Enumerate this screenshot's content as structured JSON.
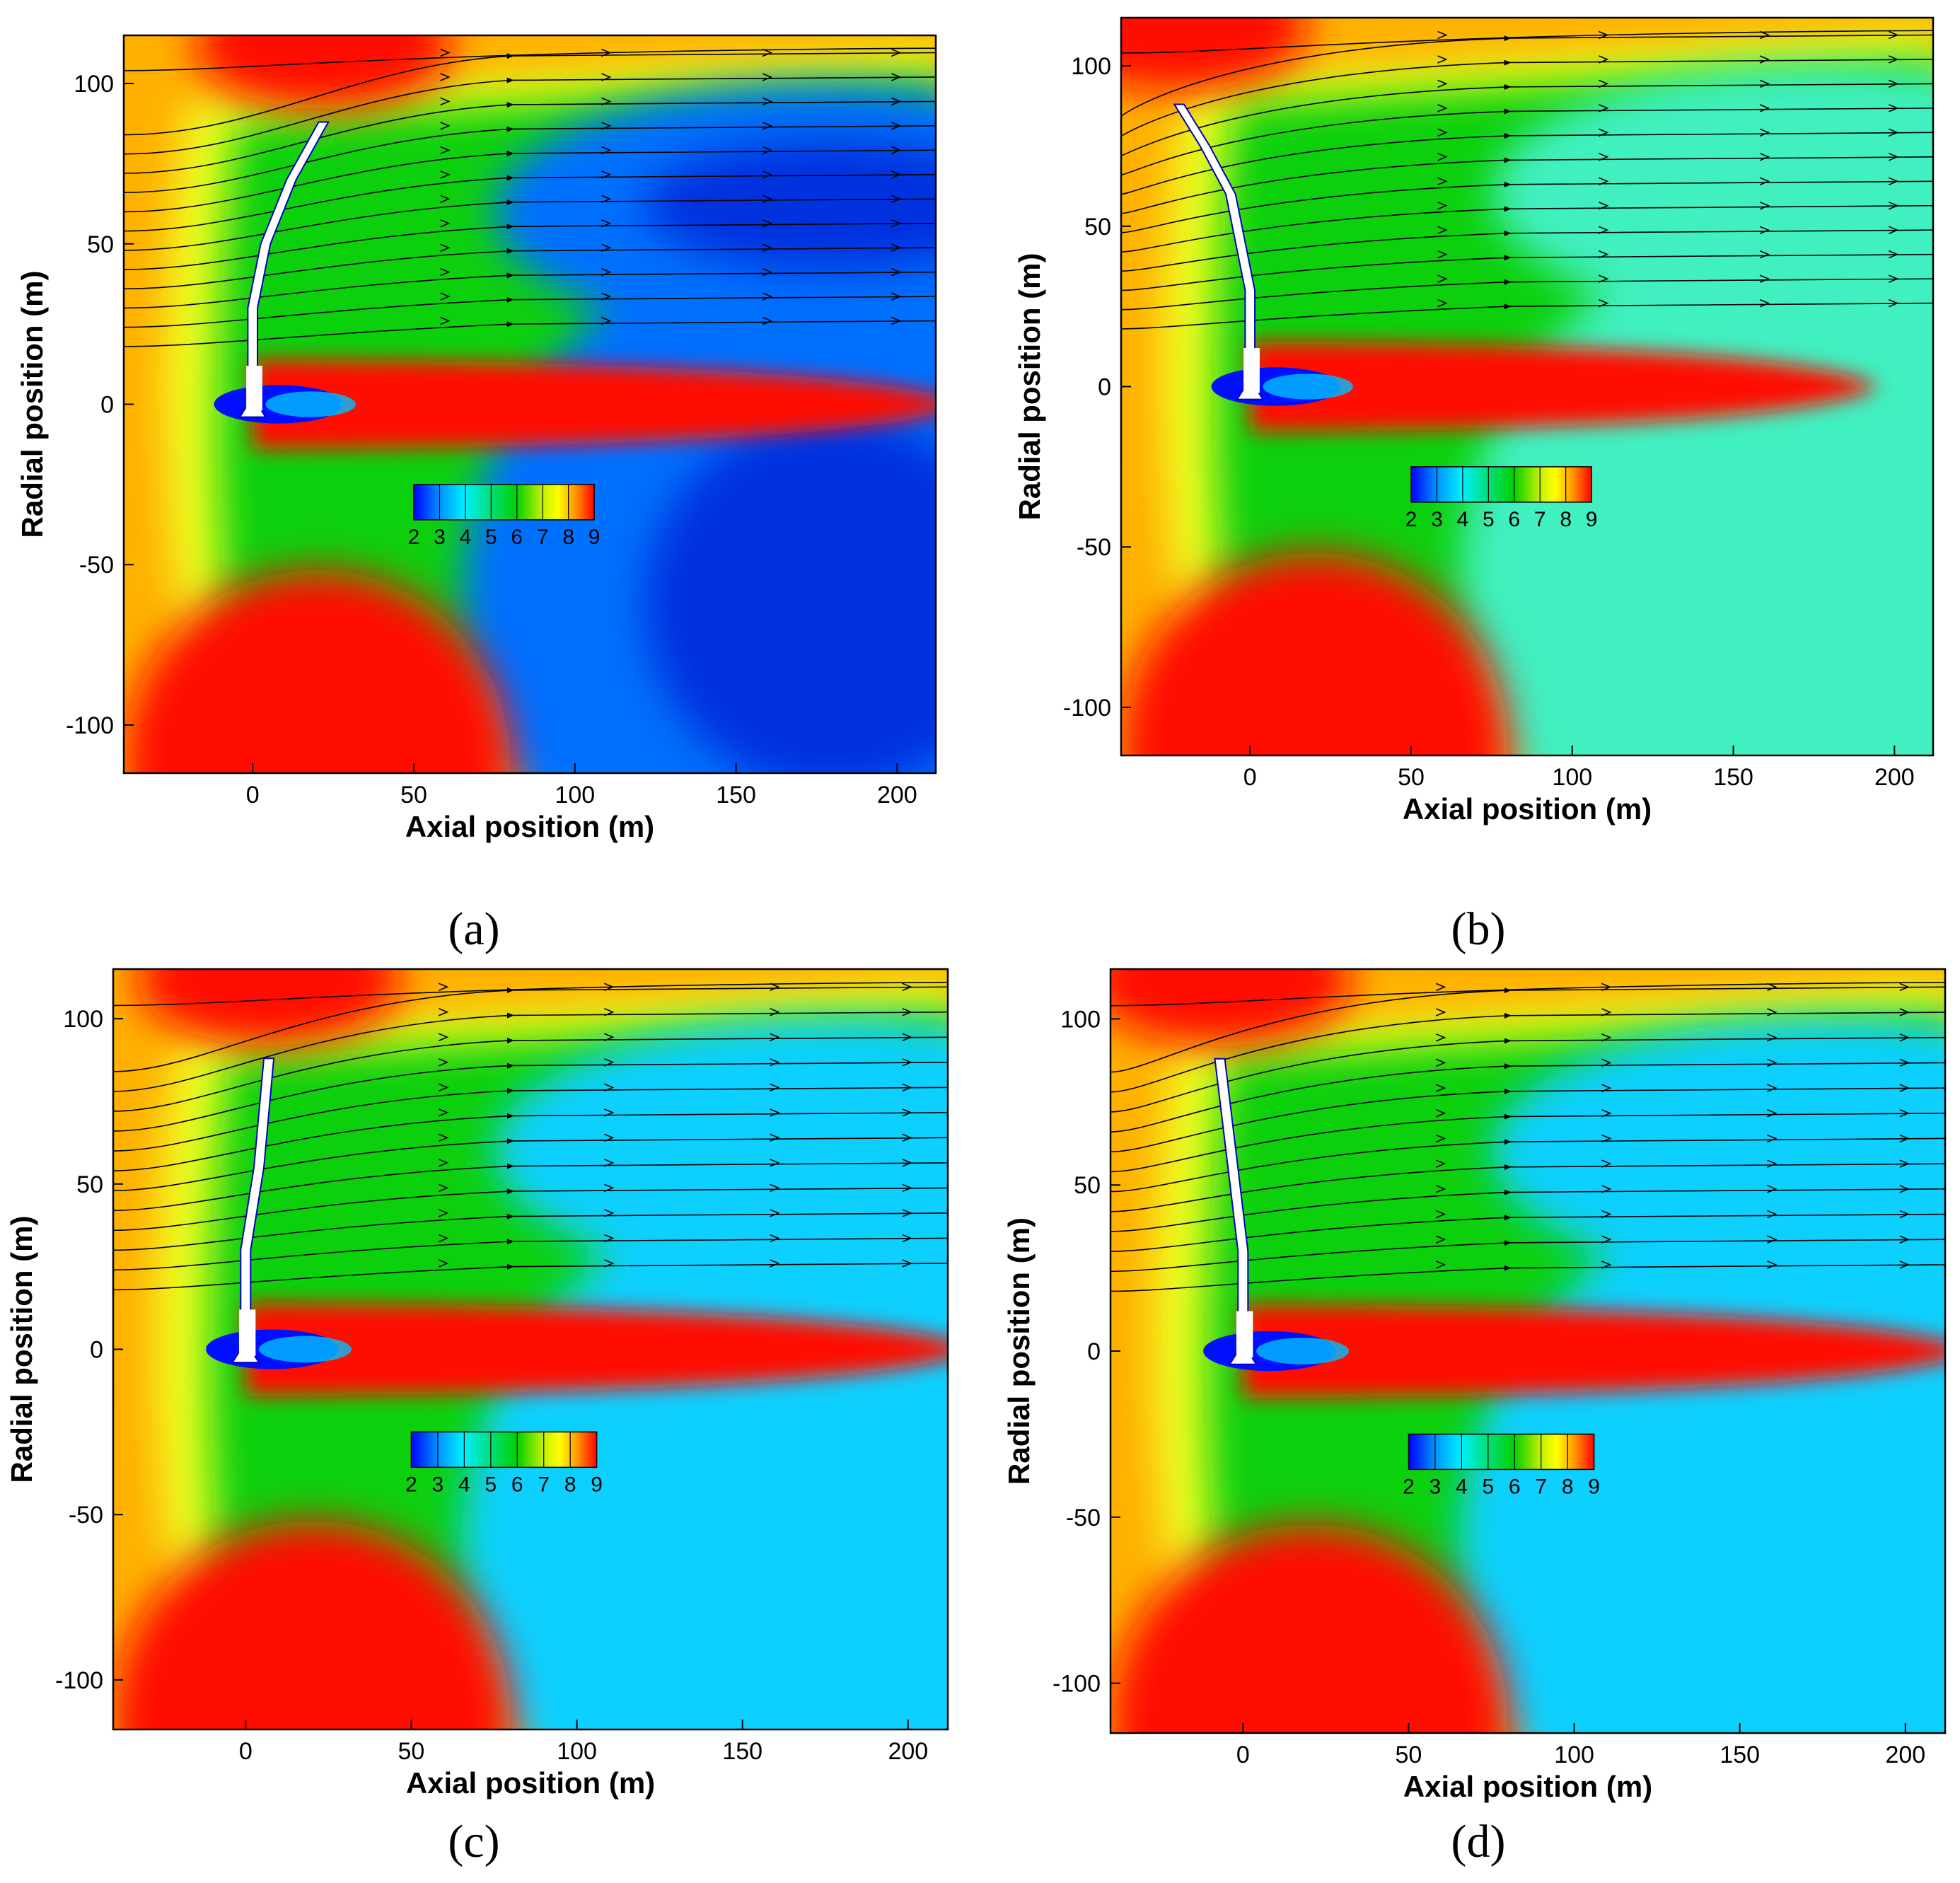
{
  "chart_data": [
    {
      "panel": "(a)",
      "type": "heatmap",
      "xlabel": "Axial position (m)",
      "ylabel": "Radial position (m)",
      "xlim": [
        -40,
        212
      ],
      "ylim": [
        -115,
        115
      ],
      "xticks": [
        0,
        50,
        100,
        150,
        200
      ],
      "yticks": [
        -100,
        -50,
        0,
        50,
        100
      ],
      "colorbar": {
        "ticks": [
          2,
          3,
          4,
          5,
          6,
          7,
          8,
          9
        ]
      },
      "tower_top_x": 22,
      "blade_profile": [
        [
          0,
          0
        ],
        [
          0,
          30
        ],
        [
          4,
          50
        ],
        [
          12,
          70
        ],
        [
          22,
          88
        ]
      ],
      "wake_tilt": 0
    },
    {
      "panel": "(b)",
      "type": "heatmap",
      "xlabel": "Axial position (m)",
      "ylabel": "Radial position (m)",
      "xlim": [
        -40,
        212
      ],
      "ylim": [
        -115,
        115
      ],
      "xticks": [
        0,
        50,
        100,
        150,
        200
      ],
      "yticks": [
        -100,
        -50,
        0,
        50,
        100
      ],
      "colorbar": {
        "ticks": [
          2,
          3,
          4,
          5,
          6,
          7,
          8,
          9
        ]
      },
      "tower_top_x": -22,
      "blade_profile": [
        [
          0,
          0
        ],
        [
          0,
          30
        ],
        [
          -6,
          60
        ],
        [
          -14,
          75
        ],
        [
          -22,
          88
        ]
      ],
      "wake_tilt": 0
    },
    {
      "panel": "(c)",
      "type": "heatmap",
      "xlabel": "Axial position (m)",
      "ylabel": "Radial position (m)",
      "xlim": [
        -40,
        212
      ],
      "ylim": [
        -115,
        115
      ],
      "xticks": [
        0,
        50,
        100,
        150,
        200
      ],
      "yticks": [
        -100,
        -50,
        0,
        50,
        100
      ],
      "colorbar": {
        "ticks": [
          2,
          3,
          4,
          5,
          6,
          7,
          8,
          9
        ]
      },
      "tower_top_x": 7,
      "blade_profile": [
        [
          0,
          0
        ],
        [
          0,
          30
        ],
        [
          4,
          55
        ],
        [
          7,
          88
        ]
      ],
      "wake_tilt": 0
    },
    {
      "panel": "(d)",
      "type": "heatmap",
      "xlabel": "Axial position (m)",
      "ylabel": "Radial position (m)",
      "xlim": [
        -40,
        212
      ],
      "ylim": [
        -115,
        115
      ],
      "xticks": [
        0,
        50,
        100,
        150,
        200
      ],
      "yticks": [
        -100,
        -50,
        0,
        50,
        100
      ],
      "colorbar": {
        "ticks": [
          2,
          3,
          4,
          5,
          6,
          7,
          8,
          9
        ]
      },
      "tower_top_x": -7,
      "blade_profile": [
        [
          0,
          0
        ],
        [
          0,
          30
        ],
        [
          -3,
          55
        ],
        [
          -7,
          88
        ]
      ],
      "wake_tilt": 0
    }
  ],
  "colors": {
    "scale": [
      "#0000ff",
      "#0080ff",
      "#00e5ff",
      "#00e080",
      "#00d000",
      "#80e000",
      "#ffff00",
      "#ffa000",
      "#ff0000"
    ]
  }
}
